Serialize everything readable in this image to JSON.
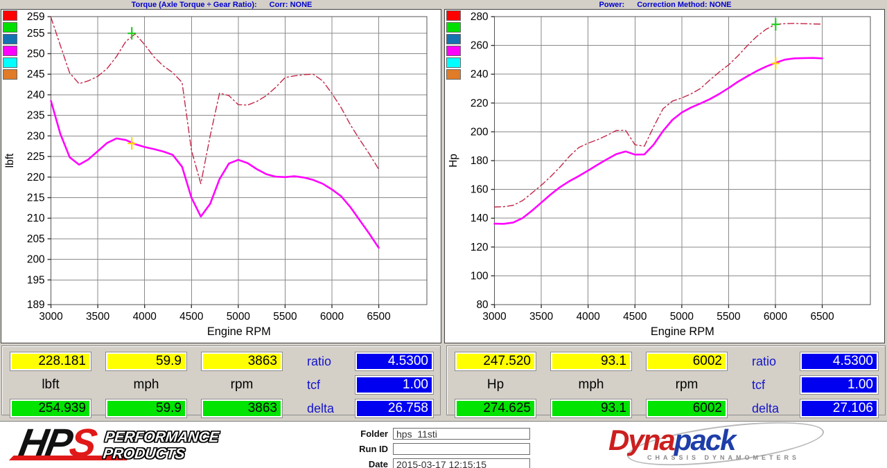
{
  "chart_data": [
    {
      "type": "line",
      "title": "Torque (Axle Torque ÷ Gear Ratio):",
      "corr": "Corr: NONE",
      "xlabel": "Engine RPM",
      "ylabel": "lbft",
      "xlim": [
        3000,
        6500
      ],
      "ylim": [
        189,
        259
      ],
      "xticks": [
        3000,
        3500,
        4000,
        4500,
        5000,
        5500,
        6000,
        6500
      ],
      "yticks": [
        189,
        195,
        200,
        205,
        210,
        215,
        220,
        225,
        230,
        235,
        240,
        245,
        250,
        255,
        259
      ],
      "grid": true,
      "x": [
        3000,
        3100,
        3200,
        3300,
        3400,
        3500,
        3600,
        3700,
        3800,
        3900,
        4000,
        4100,
        4200,
        4300,
        4400,
        4500,
        4600,
        4700,
        4800,
        4900,
        5000,
        5100,
        5200,
        5300,
        5400,
        5500,
        5600,
        5700,
        5800,
        5900,
        6000,
        6100,
        6200,
        6300,
        6400,
        6500
      ],
      "series": [
        {
          "name": "torque-measured",
          "color": "#ff00ff",
          "style": "solid",
          "values": [
            238.5,
            230.5,
            224.8,
            223.0,
            224.3,
            226.3,
            228.3,
            229.4,
            229.0,
            228.0,
            227.3,
            226.8,
            226.2,
            225.4,
            222.5,
            215.0,
            210.4,
            213.5,
            219.5,
            223.3,
            224.2,
            223.4,
            221.9,
            220.7,
            220.1,
            220.0,
            220.2,
            219.9,
            219.3,
            218.4,
            217.0,
            215.3,
            212.6,
            209.4,
            206.2,
            202.8
          ]
        },
        {
          "name": "torque-corrected",
          "color": "#c22547",
          "style": "dashdot",
          "values": [
            258.8,
            252.0,
            245.3,
            242.7,
            243.4,
            244.5,
            246.4,
            249.3,
            253.0,
            254.8,
            252.2,
            249.2,
            247.0,
            245.4,
            243.0,
            226.5,
            218.4,
            230.0,
            240.4,
            239.8,
            237.6,
            237.5,
            238.4,
            239.8,
            241.8,
            244.2,
            244.6,
            244.9,
            245.0,
            243.4,
            240.3,
            236.8,
            232.6,
            229.0,
            225.6,
            221.9
          ]
        }
      ],
      "markers": [
        {
          "name": "peak-corrected-marker",
          "x": 3863,
          "y": 254.939,
          "color": "#1fcc1f"
        },
        {
          "name": "cursor-marker",
          "x": 3863,
          "y": 228.181,
          "color": "#ffd400"
        }
      ],
      "legend_colors": [
        "#ff0000",
        "#00e000",
        "#1673b1",
        "#ff00ff",
        "#00ffff",
        "#e07b28"
      ]
    },
    {
      "type": "line",
      "title": "Power:",
      "corr": "Correction Method: NONE",
      "xlabel": "Engine RPM",
      "ylabel": "Hp",
      "xlim": [
        3000,
        6500
      ],
      "ylim": [
        80,
        280
      ],
      "xticks": [
        3000,
        3500,
        4000,
        4500,
        5000,
        5500,
        6000,
        6500
      ],
      "yticks": [
        80,
        100,
        120,
        140,
        160,
        180,
        200,
        220,
        240,
        260,
        280
      ],
      "grid": true,
      "x": [
        3000,
        3100,
        3200,
        3300,
        3400,
        3500,
        3600,
        3700,
        3800,
        3900,
        4000,
        4100,
        4200,
        4300,
        4400,
        4500,
        4600,
        4700,
        4800,
        4900,
        5000,
        5100,
        5200,
        5300,
        5400,
        5500,
        5600,
        5700,
        5800,
        5900,
        6000,
        6100,
        6200,
        6300,
        6400,
        6500
      ],
      "series": [
        {
          "name": "power-measured",
          "color": "#ff00ff",
          "style": "solid",
          "values": [
            136.2,
            136.1,
            137.0,
            140.1,
            145.2,
            150.8,
            156.5,
            161.6,
            165.7,
            169.3,
            173.1,
            177.1,
            180.9,
            184.5,
            186.4,
            184.2,
            184.3,
            191.1,
            200.6,
            208.3,
            213.4,
            216.9,
            219.7,
            222.7,
            226.3,
            230.4,
            234.8,
            238.6,
            242.2,
            245.3,
            247.9,
            250.1,
            251.0,
            251.2,
            251.3,
            251.0
          ]
        },
        {
          "name": "power-corrected",
          "color": "#c22547",
          "style": "dashdot",
          "values": [
            147.8,
            148.0,
            149.0,
            152.2,
            157.5,
            162.9,
            168.9,
            175.6,
            183.0,
            189.1,
            192.1,
            194.5,
            197.5,
            200.9,
            201.0,
            191.0,
            190.0,
            203.5,
            216.0,
            221.3,
            223.5,
            226.4,
            230.1,
            236.0,
            241.5,
            246.5,
            252.8,
            259.8,
            266.2,
            271.2,
            274.6,
            275.1,
            275.3,
            275.1,
            274.9,
            274.8
          ]
        }
      ],
      "markers": [
        {
          "name": "peak-corrected-marker",
          "x": 6002,
          "y": 274.625,
          "color": "#1fcc1f"
        },
        {
          "name": "cursor-marker",
          "x": 6002,
          "y": 247.52,
          "color": "#ffd400"
        }
      ],
      "legend_colors": [
        "#ff0000",
        "#00e000",
        "#1673b1",
        "#ff00ff",
        "#00ffff",
        "#e07b28"
      ]
    }
  ],
  "readouts": [
    {
      "cursor": [
        "228.181",
        "59.9",
        "3863"
      ],
      "units": [
        "lbft",
        "mph",
        "rpm"
      ],
      "peak": [
        "254.939",
        "59.9",
        "3863"
      ],
      "stats": [
        {
          "label": "ratio",
          "value": "4.5300"
        },
        {
          "label": "tcf",
          "value": "1.00"
        },
        {
          "label": "delta",
          "value": "26.758"
        }
      ]
    },
    {
      "cursor": [
        "247.520",
        "93.1",
        "6002"
      ],
      "units": [
        "Hp",
        "mph",
        "rpm"
      ],
      "peak": [
        "274.625",
        "93.1",
        "6002"
      ],
      "stats": [
        {
          "label": "ratio",
          "value": "4.5300"
        },
        {
          "label": "tcf",
          "value": "1.00"
        },
        {
          "label": "delta",
          "value": "27.106"
        }
      ]
    }
  ],
  "footer": {
    "hps": {
      "hp": "HP",
      "s": "S",
      "tagline1": "PERFORMANCE",
      "tagline2": "PRODUCTS"
    },
    "fields": [
      {
        "label": "Folder",
        "value": "hps_11sti"
      },
      {
        "label": "Run ID",
        "value": ""
      },
      {
        "label": "Date",
        "value": "2015-03-17 12:15:15"
      }
    ],
    "dynapack": {
      "part1": "Dyna",
      "part2": "pack",
      "subtitle": "CHASSIS DYNAMOMETERS"
    }
  }
}
